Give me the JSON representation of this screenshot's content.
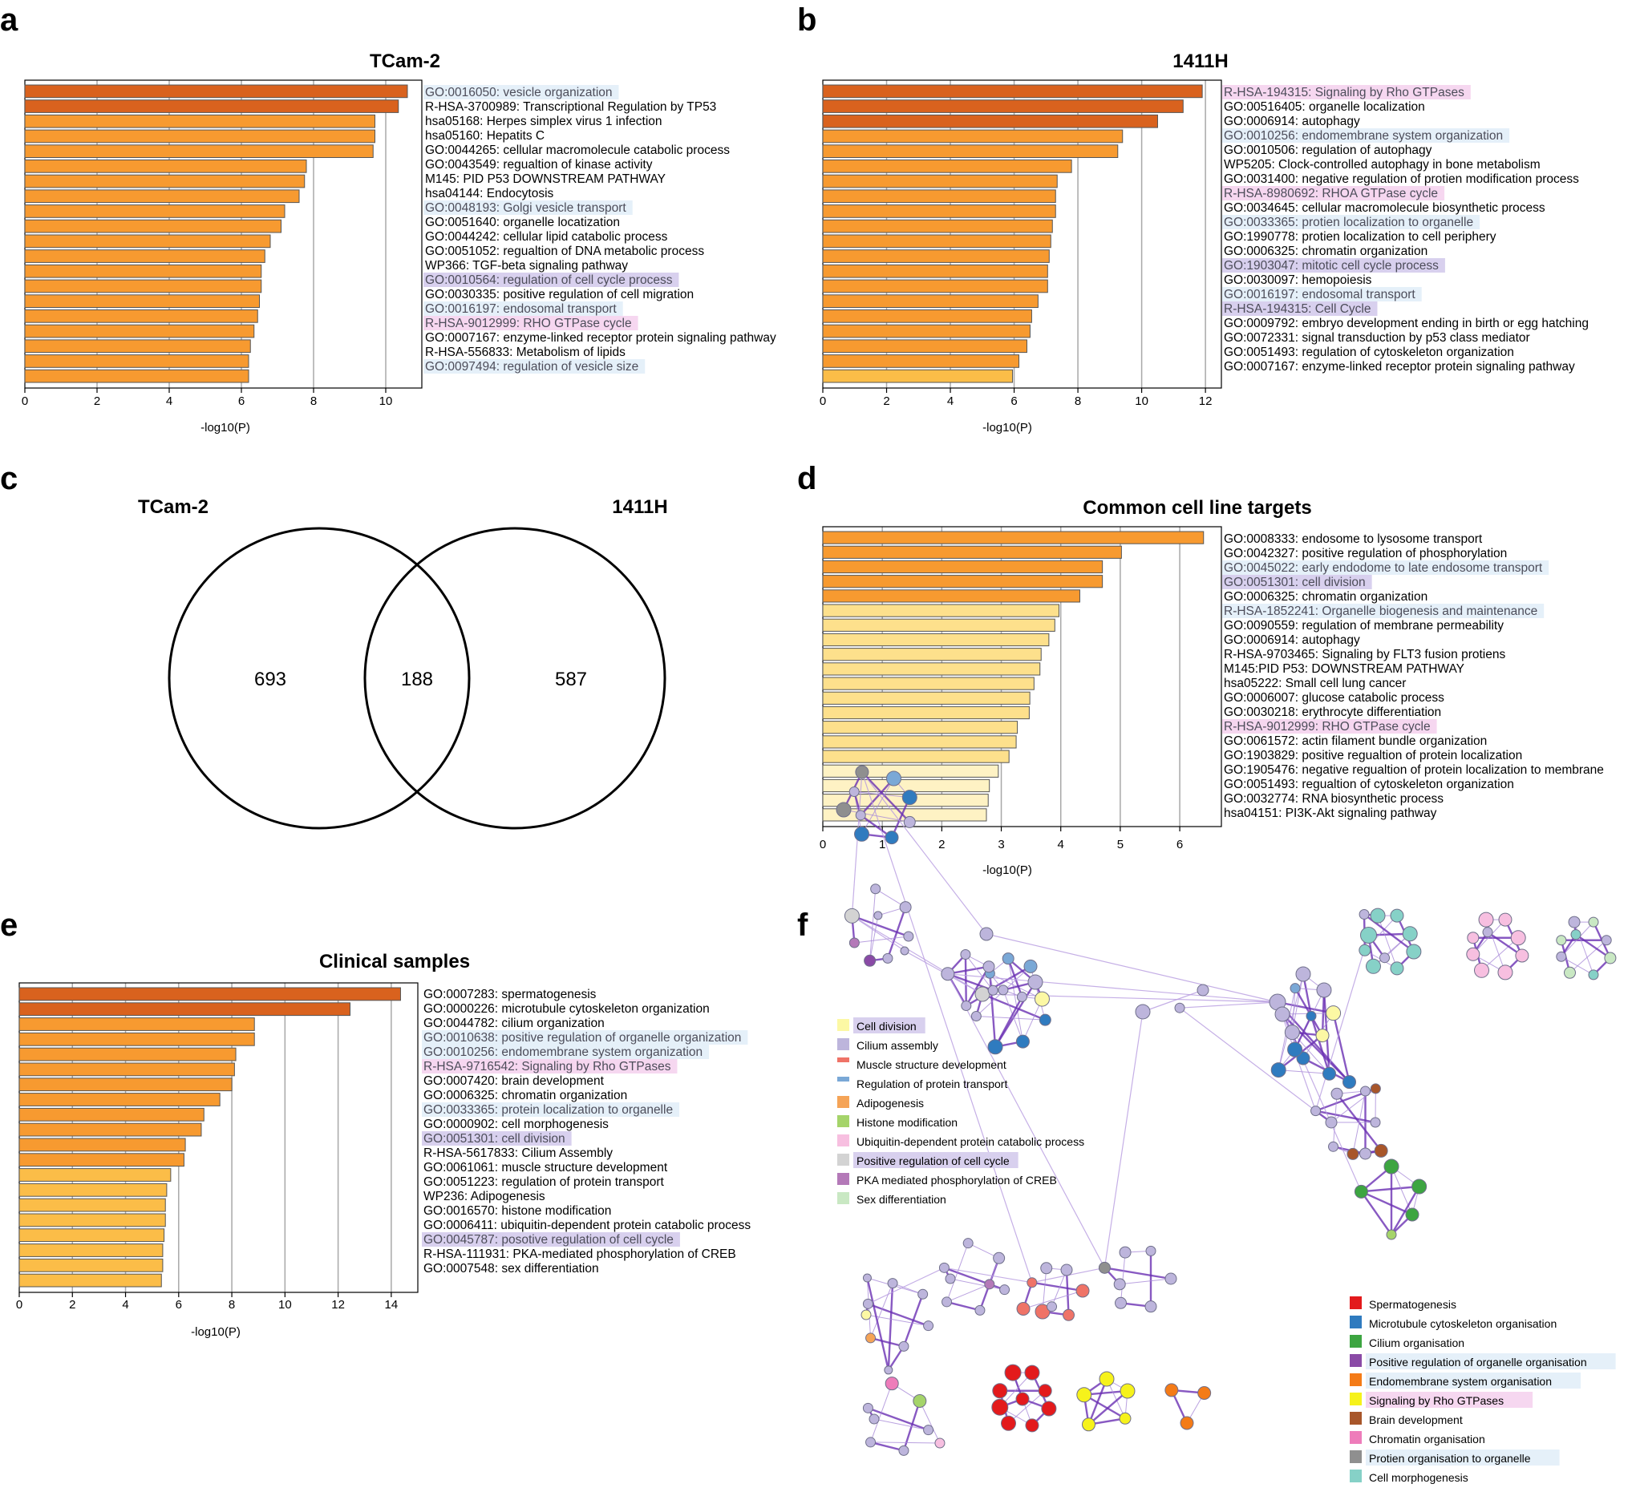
{
  "panels": {
    "a": "a",
    "b": "b",
    "c": "c",
    "d": "d",
    "e": "e",
    "f": "f"
  },
  "colors": {
    "dark": "#d9621e",
    "mid": "#f79a30",
    "light": "#fbbd48",
    "pale": "#fde08c",
    "paler": "#fef2c4",
    "hl_blue": "#e5f0f9",
    "hl_purple": "#d8d0ee",
    "hl_pink": "#f6d7f0"
  },
  "chart_data": [
    {
      "id": "a",
      "type": "bar",
      "orientation": "horizontal",
      "title": "TCam-2",
      "xlabel": "-log10(P)",
      "xlim": [
        0,
        11
      ],
      "ticks": [
        0,
        2,
        4,
        6,
        8,
        10
      ],
      "categories": [
        "GO:0016050: vesicle organization",
        "R-HSA-3700989: Transcriptional Regulation by TP53",
        "hsa05168: Herpes simplex virus 1 infection",
        "hsa05160: Hepatits C",
        "GO:0044265: cellular macromolecule catabolic process",
        "GO:0043549: regualtion of kinase activity",
        "M145: PID P53 DOWNSTREAM PATHWAY",
        "hsa04144: Endocytosis",
        "GO:0048193: Golgi vesicle transport",
        "GO:0051640: organelle locatization",
        "GO:0044242: cellular lipid catabolic process",
        "GO:0051052: regualtion of DNA metabolic process",
        "WP366: TGF-beta signaling pathway",
        "GO:0010564: regulation of cell cycle process",
        "GO:0030335: positive regulation of cell migration",
        "GO:0016197: endosomal transport",
        "R-HSA-9012999: RHO GTPase cycle",
        "GO:0007167: enzyme-linked receptor protein signaling pathway",
        "R-HSA-556833: Metabolism of lipids",
        "GO:0097494: regulation of vesicle size"
      ],
      "values": [
        10.6,
        10.35,
        9.7,
        9.7,
        9.65,
        7.8,
        7.75,
        7.6,
        7.2,
        7.1,
        6.8,
        6.65,
        6.55,
        6.55,
        6.5,
        6.45,
        6.35,
        6.25,
        6.2,
        6.2
      ],
      "highlights": [
        "blue",
        "",
        "",
        "",
        "",
        "",
        "",
        "",
        "blue",
        "",
        "",
        "",
        "",
        "purple",
        "",
        "blue",
        "pink",
        "",
        "",
        "blue"
      ]
    },
    {
      "id": "b",
      "type": "bar",
      "orientation": "horizontal",
      "title": "1411H",
      "xlabel": "-log10(P)",
      "xlim": [
        0,
        12.5
      ],
      "ticks": [
        0,
        2,
        4,
        6,
        8,
        10,
        12
      ],
      "categories": [
        "R-HSA-194315: Signaling by Rho GTPases",
        "GO:00516405: organelle localization",
        "GO:0006914: autophagy",
        "GO:0010256: endomembrane system organization",
        "GO:0010506: regulation of autophagy",
        "WP5205: Clock-controlled autophagy in bone metabolism",
        "GO:0031400: negative regulation of protien modification process",
        "R-HSA-8980692: RHOA GTPase cycle",
        "GO:0034645: cellular macromolecule biosynthetic process",
        "GO:0033365: protien localization to organelle",
        "GO:1990778: protien localization to cell periphery",
        "GO:0006325: chromatin organization",
        "GO:1903047: mitotic cell cycle process",
        "GO:0030097: hemopoiesis",
        "GO:0016197: endosomal transport",
        "R-HSA-194315: Cell Cycle",
        "GO:0009792: embryo development ending in birth or egg hatching",
        "GO:0072331: signal transduction by p53 class mediator",
        "GO:0051493: regulation of cytoskeleton organization",
        "GO:0007167: enzyme-linked receptor protein signaling pathway"
      ],
      "values": [
        11.9,
        11.3,
        10.5,
        9.4,
        9.25,
        7.8,
        7.35,
        7.3,
        7.3,
        7.2,
        7.15,
        7.1,
        7.05,
        7.05,
        6.75,
        6.55,
        6.5,
        6.4,
        6.15,
        5.95
      ],
      "highlights": [
        "pink",
        "",
        "",
        "blue",
        "",
        "",
        "",
        "pink",
        "",
        "blue",
        "",
        "",
        "purple",
        "",
        "blue",
        "purple",
        "",
        "",
        "",
        ""
      ]
    },
    {
      "id": "d",
      "type": "bar",
      "orientation": "horizontal",
      "title": "Common cell line targets",
      "xlabel": "-log10(P)",
      "xlim": [
        0,
        6.7
      ],
      "ticks": [
        0,
        1,
        2,
        3,
        4,
        5,
        6
      ],
      "categories": [
        "GO:0008333: endosome to lysosome transport",
        "GO:0042327: positive regulation of phosphorylation",
        "GO:0045022: early endodome to late endosome transport",
        "GO:0051301: cell division",
        "GO:0006325: chromatin organization",
        "R-HSA-1852241: Organelle biogenesis and maintenance",
        "GO:0090559: regulation of membrane permeability",
        "GO:0006914: autophagy",
        "R-HSA-9703465: Signaling by FLT3 fusion protiens",
        "M145:PID P53: DOWNSTREAM PATHWAY",
        "hsa05222: Small cell lung cancer",
        "GO:0006007: glucose catabolic process",
        "GO:0030218: erythrocyte differentiation",
        "R-HSA-9012999: RHO GTPase cycle",
        "GO:0061572: actin filament bundle organization",
        "GO:1903829: positive regualtion of protein localization",
        "GO:1905476: negative regualtion of protein localization to membrane",
        "GO:0051493: regualtion of cytoskeleton organization",
        "GO:0032774: RNA biosynthetic process",
        "hsa04151: PI3K-Akt signaling pathway"
      ],
      "values": [
        6.4,
        5.02,
        4.7,
        4.7,
        4.32,
        3.97,
        3.9,
        3.8,
        3.67,
        3.65,
        3.55,
        3.48,
        3.47,
        3.27,
        3.25,
        3.13,
        2.95,
        2.8,
        2.78,
        2.75
      ],
      "highlights": [
        "",
        "",
        "blue",
        "purple",
        "",
        "blue",
        "",
        "",
        "",
        "",
        "",
        "",
        "",
        "pink",
        "",
        "",
        "",
        "",
        "",
        ""
      ]
    },
    {
      "id": "e",
      "type": "bar",
      "orientation": "horizontal",
      "title": "Clinical samples",
      "xlabel": "-log10(P)",
      "xlim": [
        0,
        15
      ],
      "ticks": [
        0,
        2,
        4,
        6,
        8,
        10,
        12,
        14
      ],
      "categories": [
        "GO:0007283: spermatogenesis",
        "GO:0000226: microtubule cytoskeleton organization",
        "GO:0044782: cilium organization",
        "GO:0010638: positive regulation of organelle organization",
        "GO:0010256: endomembrane system organization",
        "R-HSA-9716542: Signaling by Rho GTPases",
        "GO:0007420: brain development",
        "GO:0006325: chromatin organization",
        "GO:0033365: protein localization to organelle",
        "GO:0000902: cell morphogenesis",
        "GO:0051301: cell division",
        "R-HSA-5617833: Cilium Assembly",
        "GO:0061061: muscle structure development",
        "GO:0051223: regulation of protein transport",
        "WP236: Adipogenesis",
        "GO:0016570: histone modification",
        "GO:0006411: ubiquitin-dependent protein catabolic process",
        "GO:0045787: posotive regulation of cell cycle",
        "R-HSA-111931: PKA-mediated phosphorylation of CREB",
        "GO:0007548: sex differentiation"
      ],
      "values": [
        14.35,
        12.45,
        8.85,
        8.85,
        8.15,
        8.1,
        8.0,
        7.55,
        6.95,
        6.85,
        6.25,
        6.2,
        5.7,
        5.55,
        5.5,
        5.5,
        5.45,
        5.4,
        5.4,
        5.35
      ],
      "highlights": [
        "",
        "",
        "",
        "blue",
        "blue",
        "pink",
        "",
        "",
        "blue",
        "",
        "purple",
        "",
        "",
        "",
        "",
        "",
        "",
        "purple",
        "",
        ""
      ]
    }
  ],
  "venn": {
    "left_label": "TCam-2",
    "right_label": "1411H",
    "left_only": "693",
    "overlap": "188",
    "right_only": "587"
  },
  "network": {
    "legend_left": [
      {
        "label": "Cell division",
        "color": "#fcf8a4",
        "hl": "purple"
      },
      {
        "label": "Cilium assembly",
        "color": "#bdb5dc",
        "hl": ""
      },
      {
        "label": "Muscle structure development",
        "color": "#ef7367",
        "hl": ""
      },
      {
        "label": "Regulation of protein transport",
        "color": "#7aa8d6",
        "hl": ""
      },
      {
        "label": "Adipogenesis",
        "color": "#f5a457",
        "hl": ""
      },
      {
        "label": "Histone modification",
        "color": "#a5d46a",
        "hl": ""
      },
      {
        "label": "Ubiquitin-dependent protein catabolic process",
        "color": "#f7bfe0",
        "hl": ""
      },
      {
        "label": "Positive regulation of cell cycle",
        "color": "#d3d3d3",
        "hl": "purple"
      },
      {
        "label": "PKA mediated phosphorylation of CREB",
        "color": "#b479b8",
        "hl": ""
      },
      {
        "label": "Sex differentiation",
        "color": "#c9e8c3",
        "hl": ""
      }
    ],
    "legend_right": [
      {
        "label": "Spermatogenesis",
        "color": "#e31a1c",
        "hl": ""
      },
      {
        "label": "Microtubule cytoskeleton organisation",
        "color": "#2f7bbf",
        "hl": ""
      },
      {
        "label": "Cilium organisation",
        "color": "#3da541",
        "hl": ""
      },
      {
        "label": "Positive regulation of organelle organisation",
        "color": "#8a4aa6",
        "hl": "blue"
      },
      {
        "label": "Endomembrane system organisation",
        "color": "#f47b17",
        "hl": "blue"
      },
      {
        "label": "Signaling by Rho GTPases",
        "color": "#f6f21b",
        "hl": "pink"
      },
      {
        "label": "Brain development",
        "color": "#a8562a",
        "hl": ""
      },
      {
        "label": "Chromatin organisation",
        "color": "#ee7cba",
        "hl": ""
      },
      {
        "label": "Protien organisation to organelle",
        "color": "#8f8f8f",
        "hl": "blue"
      },
      {
        "label": "Cell morphogenesis",
        "color": "#86d1c7",
        "hl": ""
      }
    ]
  }
}
